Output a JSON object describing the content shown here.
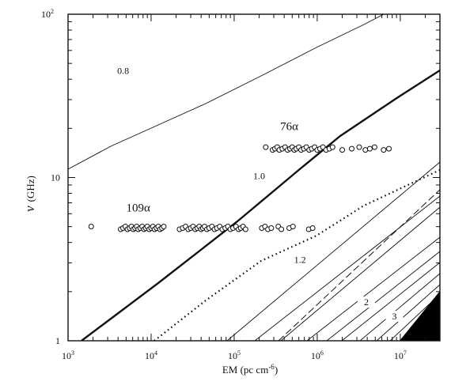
{
  "chart_data": {
    "type": "scatter",
    "x_scale": "log",
    "y_scale": "log",
    "xlim": [
      1000,
      30000000
    ],
    "ylim": [
      1,
      100
    ],
    "xlabel": "EM (pc cm",
    "xlabel_sup": "-6",
    "xlabel_end": ")",
    "ylabel_symbol": "ν",
    "ylabel_unit": "(GHz)",
    "x_ticks": [
      {
        "value": 1000,
        "base": "10",
        "exp": "3"
      },
      {
        "value": 10000,
        "base": "10",
        "exp": "4"
      },
      {
        "value": 100000,
        "base": "10",
        "exp": "5"
      },
      {
        "value": 1000000,
        "base": "10",
        "exp": "6"
      },
      {
        "value": 10000000,
        "base": "10",
        "exp": "7"
      }
    ],
    "y_ticks": [
      {
        "value": 1,
        "label": "1"
      },
      {
        "value": 10,
        "label": "10"
      },
      {
        "value": 100,
        "label": "10",
        "sup": "2"
      }
    ],
    "line_labels": [
      {
        "text": "0.8",
        "x": 4600,
        "y": 43
      },
      {
        "text": "1.0",
        "x": 200000,
        "y": 9.8
      },
      {
        "text": "1.2",
        "x": 620000,
        "y": 3.0
      },
      {
        "text": "2",
        "x": 3900000,
        "y": 1.65
      },
      {
        "text": "3",
        "x": 8500000,
        "y": 1.35
      }
    ],
    "series": [
      {
        "name": "109α",
        "label_at": {
          "x": 7000,
          "y": 6.2
        },
        "y": 4.9,
        "x": [
          1900,
          4300,
          4600,
          4900,
          5200,
          5500,
          5800,
          6100,
          6400,
          6700,
          7000,
          7400,
          7800,
          8200,
          8600,
          9000,
          9500,
          10000,
          10500,
          11000,
          11600,
          12200,
          12800,
          13500,
          14200,
          22000,
          24000,
          26000,
          28000,
          30000,
          32000,
          34000,
          36000,
          38000,
          40000,
          42000,
          44000,
          47000,
          50000,
          54000,
          58000,
          62000,
          67000,
          72000,
          78000,
          84000,
          90000,
          97000,
          105000,
          113000,
          120000,
          128000,
          137000,
          215000,
          235000,
          255000,
          280000,
          340000,
          370000,
          460000,
          510000,
          790000,
          880000
        ]
      },
      {
        "name": "76α",
        "label_at": {
          "x": 460000,
          "y": 19.5
        },
        "y": 15,
        "x": [
          240000,
          290000,
          310000,
          330000,
          350000,
          380000,
          410000,
          440000,
          470000,
          500000,
          530000,
          560000,
          600000,
          640000,
          690000,
          740000,
          800000,
          860000,
          930000,
          1000000,
          1080000,
          1170000,
          1280000,
          1400000,
          1530000,
          2000000,
          2600000,
          3200000,
          3800000,
          4300000,
          4900000,
          6300000,
          7300000
        ]
      }
    ]
  }
}
